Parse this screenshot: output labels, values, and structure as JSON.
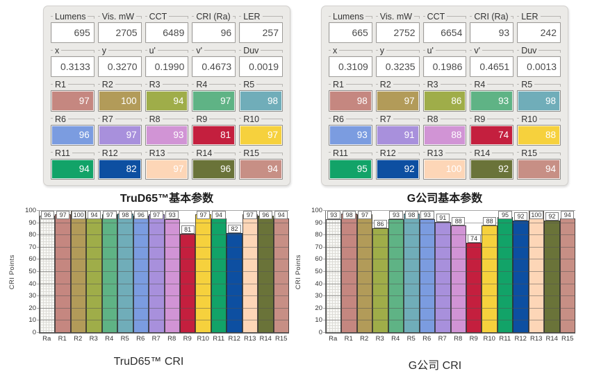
{
  "palette": {
    "R1": "#c58780",
    "R2": "#b29b59",
    "R3": "#9fad49",
    "R4": "#5fb385",
    "R5": "#70adb9",
    "R6": "#7b9ce0",
    "R7": "#a890dc",
    "R8": "#d194d5",
    "R9": "#c41f3e",
    "R10": "#f6d13d",
    "R11": "#12a368",
    "R12": "#0d4fa1",
    "R13": "#fdd6b7",
    "R14": "#6a7339",
    "R15": "#c78f85"
  },
  "panels": [
    {
      "caption": "TruD65™基本参数",
      "metrics": [
        {
          "label": "Lumens",
          "value": "695"
        },
        {
          "label": "Vis. mW",
          "value": "2705"
        },
        {
          "label": "CCT",
          "value": "6489"
        },
        {
          "label": "CRI (Ra)",
          "value": "96"
        },
        {
          "label": "LER",
          "value": "257"
        },
        {
          "label": "x",
          "value": "0.3133"
        },
        {
          "label": "y",
          "value": "0.3270"
        },
        {
          "label": "u'",
          "value": "0.1990"
        },
        {
          "label": "v'",
          "value": "0.4673"
        },
        {
          "label": "Duv",
          "value": "0.0019"
        }
      ],
      "cri_swatches": [
        {
          "label": "R1",
          "value": "97"
        },
        {
          "label": "R2",
          "value": "100"
        },
        {
          "label": "R3",
          "value": "94"
        },
        {
          "label": "R4",
          "value": "97"
        },
        {
          "label": "R5",
          "value": "98"
        },
        {
          "label": "R6",
          "value": "96"
        },
        {
          "label": "R7",
          "value": "97"
        },
        {
          "label": "R8",
          "value": "93"
        },
        {
          "label": "R9",
          "value": "81"
        },
        {
          "label": "R10",
          "value": "97"
        },
        {
          "label": "R11",
          "value": "94"
        },
        {
          "label": "R12",
          "value": "82"
        },
        {
          "label": "R13",
          "value": "97"
        },
        {
          "label": "R14",
          "value": "96"
        },
        {
          "label": "R15",
          "value": "94"
        }
      ]
    },
    {
      "caption": "G公司基本参数",
      "metrics": [
        {
          "label": "Lumens",
          "value": "665"
        },
        {
          "label": "Vis. mW",
          "value": "2752"
        },
        {
          "label": "CCT",
          "value": "6654"
        },
        {
          "label": "CRI (Ra)",
          "value": "93"
        },
        {
          "label": "LER",
          "value": "242"
        },
        {
          "label": "x",
          "value": "0.3109"
        },
        {
          "label": "y",
          "value": "0.3235"
        },
        {
          "label": "u'",
          "value": "0.1986"
        },
        {
          "label": "v'",
          "value": "0.4651"
        },
        {
          "label": "Duv",
          "value": "0.0013"
        }
      ],
      "cri_swatches": [
        {
          "label": "R1",
          "value": "98"
        },
        {
          "label": "R2",
          "value": "97"
        },
        {
          "label": "R3",
          "value": "86"
        },
        {
          "label": "R4",
          "value": "93"
        },
        {
          "label": "R5",
          "value": "98"
        },
        {
          "label": "R6",
          "value": "93"
        },
        {
          "label": "R7",
          "value": "91"
        },
        {
          "label": "R8",
          "value": "88"
        },
        {
          "label": "R9",
          "value": "74"
        },
        {
          "label": "R10",
          "value": "88"
        },
        {
          "label": "R11",
          "value": "95"
        },
        {
          "label": "R12",
          "value": "92"
        },
        {
          "label": "R13",
          "value": "100"
        },
        {
          "label": "R14",
          "value": "92"
        },
        {
          "label": "R15",
          "value": "94"
        }
      ]
    }
  ],
  "chart_data": [
    {
      "type": "bar",
      "title": "TruD65™ CRI",
      "ylabel": "CRI Points",
      "categories": [
        "Ra",
        "R1",
        "R2",
        "R3",
        "R4",
        "R5",
        "R6",
        "R7",
        "R8",
        "R9",
        "R10",
        "R11",
        "R12",
        "R13",
        "R14",
        "R15"
      ],
      "values": [
        96,
        97,
        100,
        94,
        97,
        98,
        96,
        97,
        93,
        81,
        97,
        94,
        82,
        97,
        96,
        94
      ],
      "ylim": [
        0,
        100
      ],
      "ytick_step": 10,
      "grid": true,
      "legend": "none",
      "ra_bar_fill": "white-hatched"
    },
    {
      "type": "bar",
      "title": "G公司 CRI",
      "ylabel": "CRI Points",
      "categories": [
        "Ra",
        "R1",
        "R2",
        "R3",
        "R4",
        "R5",
        "R6",
        "R7",
        "R8",
        "R9",
        "R10",
        "R11",
        "R12",
        "R13",
        "R14",
        "R15"
      ],
      "values": [
        93,
        98,
        97,
        86,
        93,
        98,
        93,
        91,
        88,
        74,
        88,
        95,
        92,
        100,
        92,
        94
      ],
      "ylim": [
        0,
        100
      ],
      "ytick_step": 10,
      "grid": true,
      "legend": "none",
      "ra_bar_fill": "white-hatched"
    }
  ]
}
